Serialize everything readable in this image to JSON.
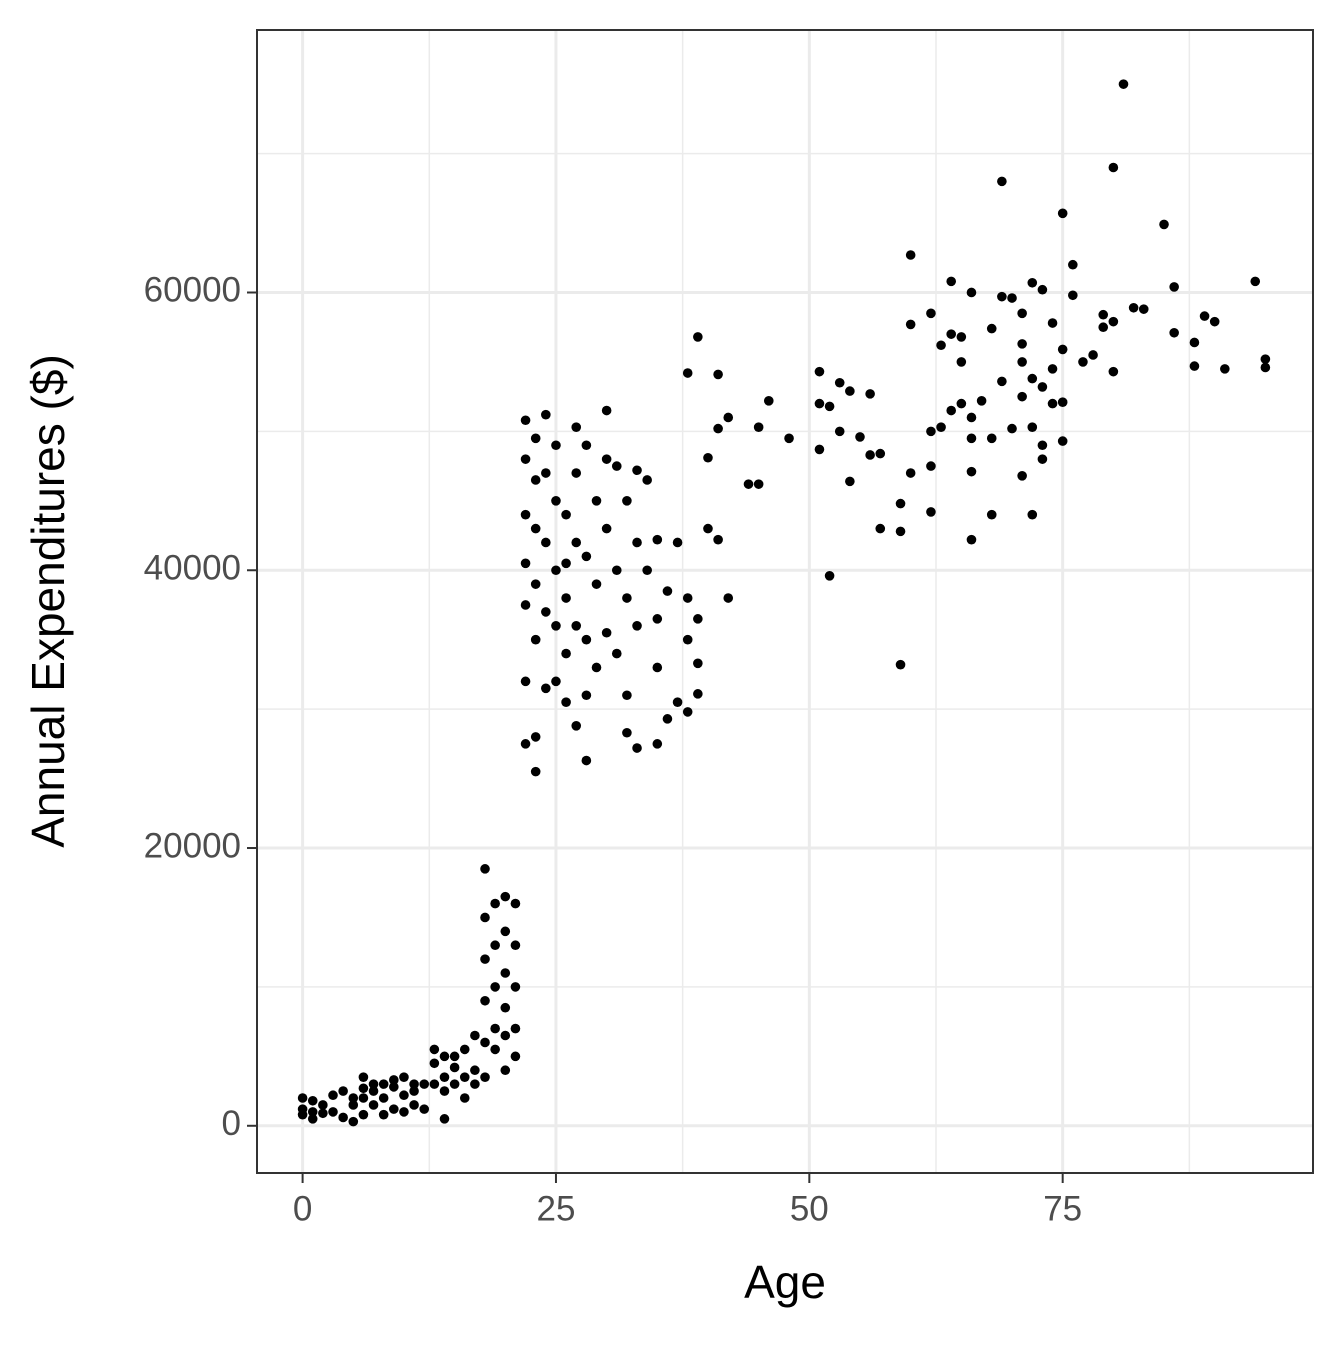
{
  "chart_data": {
    "type": "scatter",
    "xlabel": "Age",
    "ylabel": "Annual Expenditures ($)",
    "color": "#000000",
    "xlim": [
      -4.5,
      99.7
    ],
    "ylim": [
      -3400,
      78900
    ],
    "xticks": [
      0,
      25,
      50,
      75
    ],
    "yticks": [
      0,
      20000,
      40000,
      60000
    ],
    "grid": true,
    "x": [
      0,
      0,
      0,
      1,
      1,
      1,
      2,
      2,
      3,
      3,
      4,
      4,
      5,
      5,
      5,
      6,
      6,
      6,
      6,
      7,
      7,
      7,
      8,
      8,
      8,
      9,
      9,
      9,
      10,
      10,
      10,
      11,
      11,
      11,
      12,
      12,
      13,
      13,
      13,
      14,
      14,
      14,
      14,
      15,
      15,
      15,
      16,
      16,
      16,
      17,
      17,
      17,
      18,
      18,
      18,
      18,
      18,
      18,
      19,
      19,
      19,
      19,
      19,
      20,
      20,
      20,
      20,
      20,
      20,
      21,
      21,
      21,
      21,
      21,
      22,
      22,
      22,
      22,
      22,
      22,
      22,
      23,
      23,
      23,
      23,
      23,
      23,
      23,
      24,
      24,
      24,
      24,
      24,
      25,
      25,
      25,
      25,
      25,
      26,
      26,
      26,
      26,
      26,
      27,
      27,
      27,
      27,
      27,
      28,
      28,
      28,
      28,
      28,
      29,
      29,
      29,
      30,
      30,
      30,
      30,
      31,
      31,
      31,
      32,
      32,
      32,
      32,
      33,
      33,
      33,
      33,
      34,
      34,
      35,
      35,
      35,
      35,
      36,
      36,
      37,
      37,
      38,
      38,
      38,
      38,
      39,
      39,
      39,
      39,
      40,
      40,
      41,
      41,
      41,
      42,
      42,
      44,
      45,
      45,
      46,
      48,
      51,
      51,
      51,
      52,
      52,
      53,
      53,
      54,
      54,
      55,
      56,
      56,
      57,
      57,
      59,
      59,
      59,
      60,
      60,
      60,
      62,
      62,
      62,
      62,
      63,
      63,
      64,
      64,
      64,
      65,
      65,
      65,
      66,
      66,
      66,
      66,
      66,
      67,
      68,
      68,
      68,
      69,
      69,
      69,
      70,
      70,
      71,
      71,
      71,
      71,
      71,
      72,
      72,
      72,
      72,
      73,
      73,
      73,
      73,
      74,
      74,
      74,
      75,
      75,
      75,
      75,
      76,
      76,
      77,
      78,
      79,
      79,
      80,
      80,
      80,
      81,
      82,
      83,
      85,
      86,
      86,
      88,
      88,
      89,
      90,
      91,
      94,
      95,
      95
    ],
    "values": [
      2000,
      1200,
      800,
      1800,
      500,
      1000,
      1500,
      900,
      2200,
      1000,
      2500,
      600,
      2000,
      300,
      1500,
      3500,
      2000,
      800,
      2700,
      2500,
      1500,
      3000,
      3000,
      800,
      2000,
      2800,
      1200,
      3300,
      3500,
      1000,
      2200,
      2500,
      1500,
      3000,
      3000,
      1200,
      5500,
      3000,
      4500,
      5000,
      500,
      3500,
      2500,
      5000,
      3000,
      4200,
      5500,
      3500,
      2000,
      6500,
      4000,
      3000,
      18500,
      15000,
      12000,
      9000,
      6000,
      3500,
      16000,
      13000,
      10000,
      7000,
      5500,
      16500,
      14000,
      11000,
      8500,
      6500,
      4000,
      16000,
      13000,
      10000,
      7000,
      5000,
      50800,
      48000,
      44000,
      40500,
      37500,
      32000,
      27500,
      49500,
      46500,
      43000,
      39000,
      35000,
      25500,
      28000,
      51200,
      47000,
      42000,
      37000,
      31500,
      49000,
      45000,
      40000,
      36000,
      32000,
      44000,
      40500,
      38000,
      34000,
      30500,
      50300,
      47000,
      42000,
      36000,
      28800,
      49000,
      41000,
      35000,
      26300,
      31000,
      45000,
      39000,
      33000,
      51500,
      48000,
      43000,
      35500,
      47500,
      40000,
      34000,
      45000,
      38000,
      28300,
      31000,
      47200,
      42000,
      36000,
      27200,
      46500,
      40000,
      42200,
      36500,
      33000,
      27500,
      38500,
      29300,
      42000,
      30500,
      54200,
      38000,
      35000,
      29800,
      56800,
      36500,
      33300,
      31100,
      48100,
      43000,
      54100,
      50200,
      42200,
      51000,
      38000,
      46200,
      50300,
      46200,
      52200,
      49500,
      54300,
      52000,
      48700,
      51800,
      39600,
      53500,
      50000,
      52900,
      46400,
      49600,
      52700,
      48300,
      43000,
      48400,
      44800,
      42800,
      33200,
      62700,
      57700,
      47000,
      58500,
      50000,
      47500,
      44200,
      56200,
      50300,
      60800,
      57000,
      51500,
      56800,
      55000,
      52000,
      60000,
      51000,
      49500,
      47100,
      42200,
      52200,
      57400,
      49500,
      44000,
      68000,
      59700,
      53600,
      59600,
      50200,
      58500,
      56300,
      55000,
      52500,
      46800,
      60700,
      53800,
      50300,
      44000,
      60200,
      53200,
      49000,
      48000,
      57800,
      54500,
      52000,
      65700,
      55900,
      52100,
      49300,
      62000,
      59800,
      55000,
      55500,
      58400,
      57500,
      69000,
      57900,
      54300,
      75000,
      58900,
      58800,
      64900,
      60400,
      57100,
      56400,
      54700,
      58300,
      57900,
      54500,
      60800,
      55200,
      54600
    ]
  }
}
